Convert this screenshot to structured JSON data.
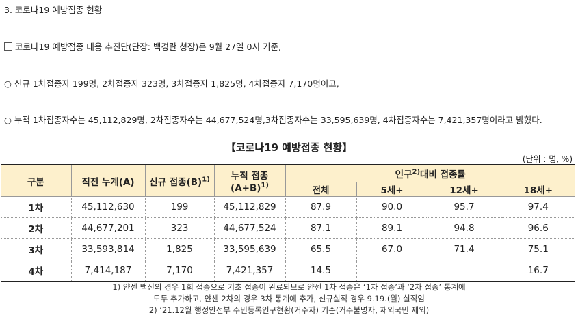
{
  "heading": "3. 코로나19 예방접종 현황",
  "para1": "코로나19 예방접종 대응 추진단(단장: 백경란 청장)은 9월 27일 0시 기준,",
  "para2": "신규 1차접종자 199명, 2차접종자 323명, 3차접종자 1,825명, 4차접종자 7,170명이고,",
  "para3": "누적 1차접종자수는 45,112,829명, 2차접종자수는 44,677,524명,3차접종자수는 33,595,639명, 4차접종자수는 7,421,357명이라고 밝혔다.",
  "markers": {
    "square": "□",
    "circle": "○"
  },
  "table_title": "【코로나19 예방접종 현황】",
  "unit": "(단위 : 명, %)",
  "headers": {
    "category": "구분",
    "prev_cumulative": "직전 누계(A)",
    "new_vaccination": "신규 접종(B)",
    "new_sup": "1)",
    "cumulative_line1": "누적 접종",
    "cumulative_line2": "(A+B)",
    "cumulative_sup": "1)",
    "ratio_prefix": "인구",
    "ratio_sup": "2)",
    "ratio_suffix": "대비 접종률",
    "age_all": "전체",
    "age_5": "5세+",
    "age_12": "12세+",
    "age_18": "18세+"
  },
  "rows": [
    {
      "label": "1차",
      "prev": "45,112,630",
      "new": "199",
      "cum": "45,112,829",
      "all": "87.9",
      "a5": "90.0",
      "a12": "95.7",
      "a18": "97.4"
    },
    {
      "label": "2차",
      "prev": "44,677,201",
      "new": "323",
      "cum": "44,677,524",
      "all": "87.1",
      "a5": "89.1",
      "a12": "94.8",
      "a18": "96.6"
    },
    {
      "label": "3차",
      "prev": "33,593,814",
      "new": "1,825",
      "cum": "33,595,639",
      "all": "65.5",
      "a5": "67.0",
      "a12": "71.4",
      "a18": "75.1"
    },
    {
      "label": "4차",
      "prev": "7,414,187",
      "new": "7,170",
      "cum": "7,421,357",
      "all": "14.5",
      "a5": "",
      "a12": "",
      "a18": "16.7"
    }
  ],
  "notes": [
    "1) 얀센 백신의 경우 1회 접종으로 기초 접종이 완료되므로 얀센 1차 접종은 ‘1차 접종’과 ‘2차 접종’ 통계에",
    "모두 추가하고, 얀센 2차의 경우 3차 통계에 추가, 신규실적 경우 9.19.(월) 실적임",
    "2) ‘21.12월 행정안전부 주민등록인구현황(거주자) 기준(거주불명자, 재외국민 제외)"
  ]
}
